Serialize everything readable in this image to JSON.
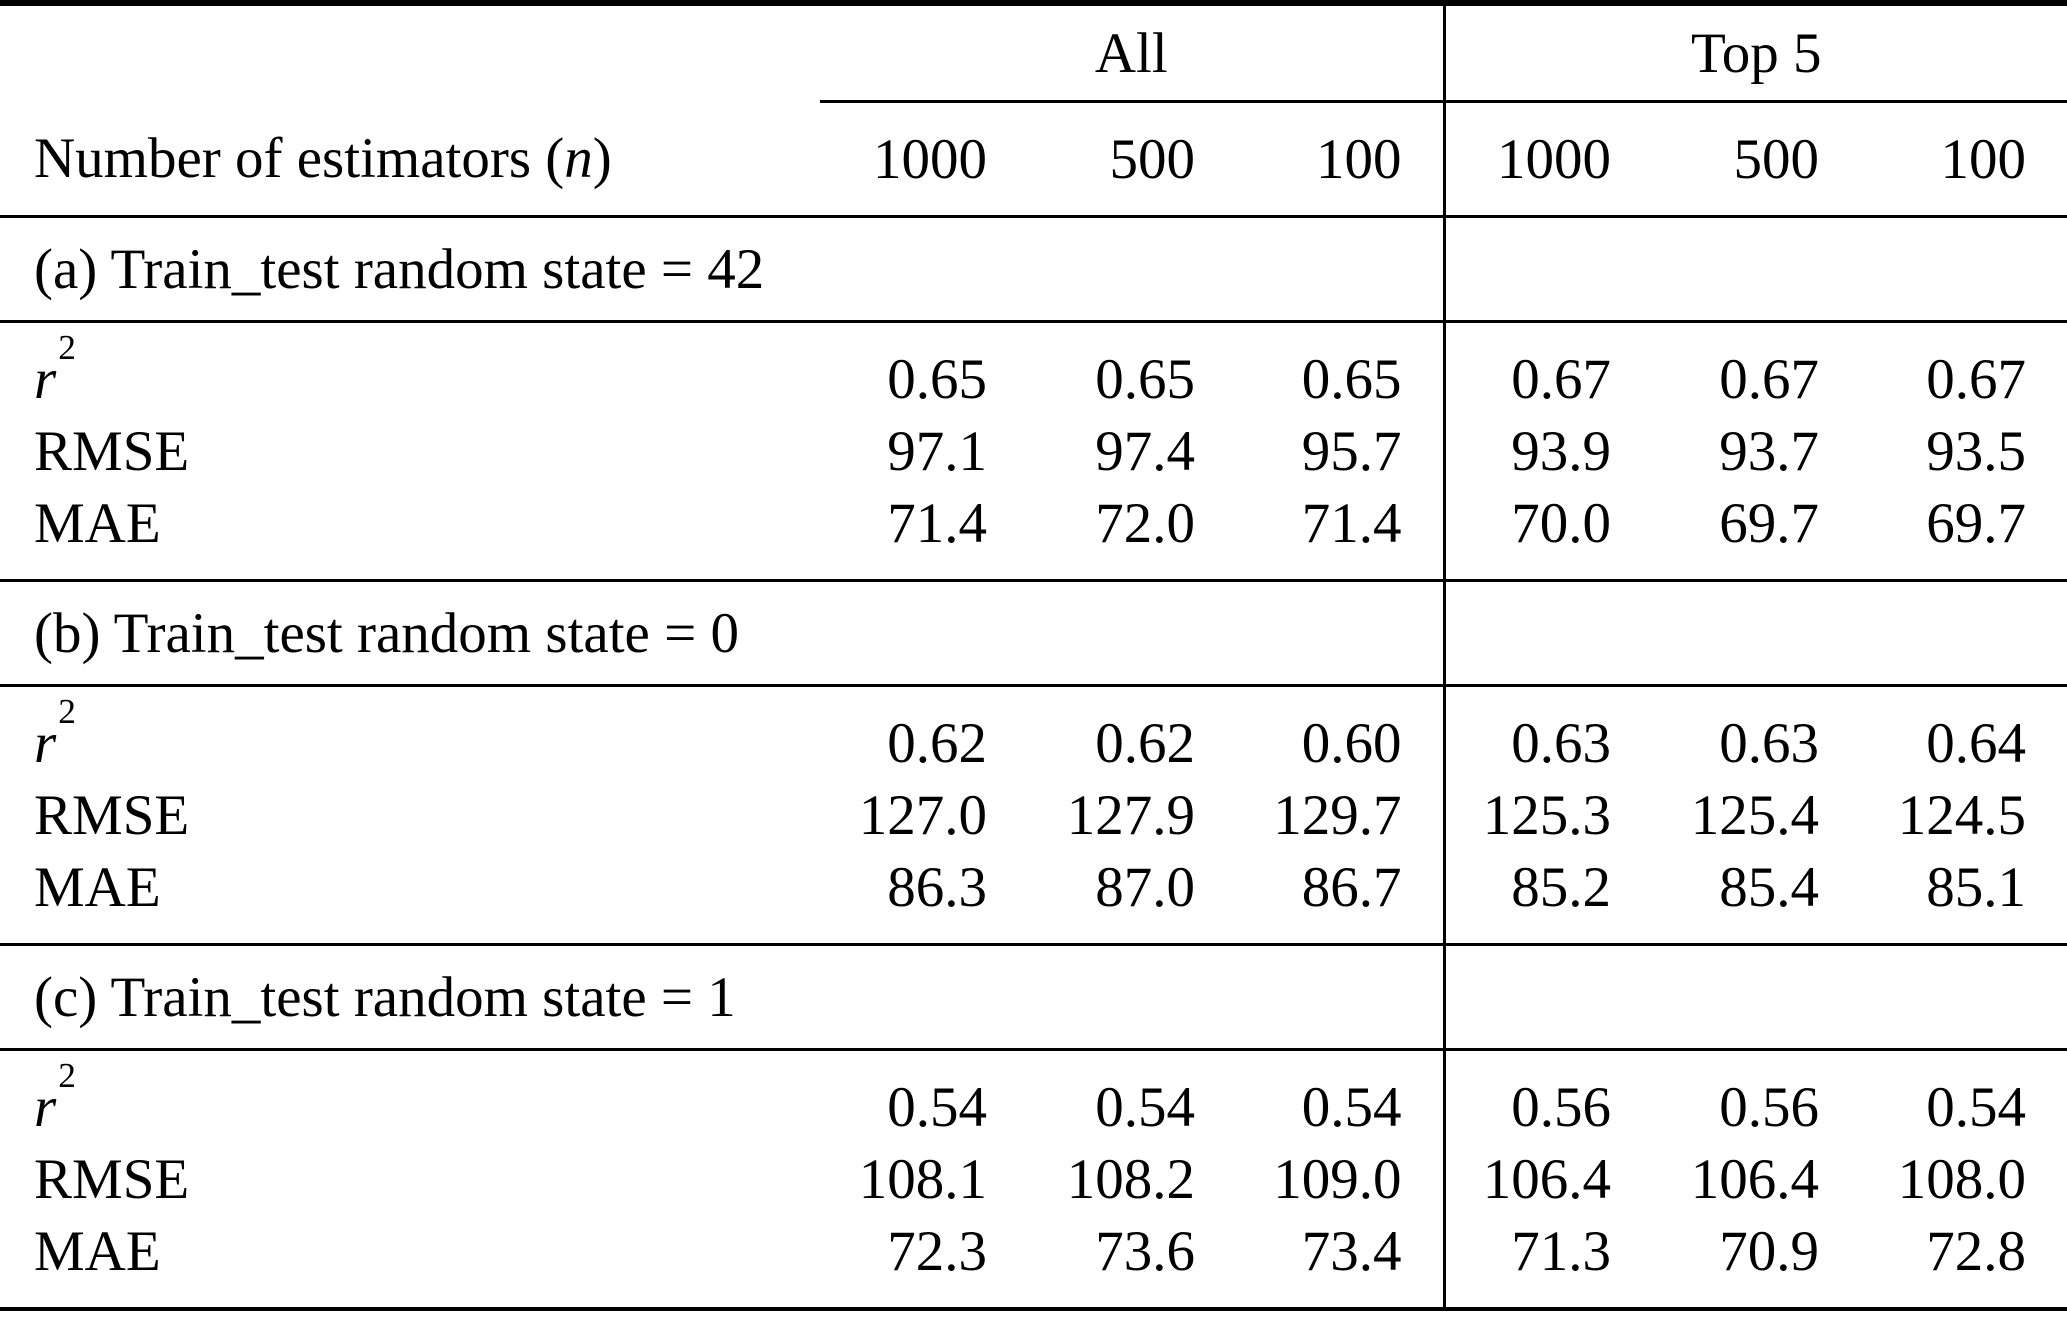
{
  "meta": {
    "text_color": "#000000",
    "background_color": "#ffffff"
  },
  "table": {
    "groups": [
      {
        "label": "All"
      },
      {
        "label": "Top 5"
      }
    ],
    "subheader": {
      "row_label_prefix": "Number of estimators (",
      "row_label_var": "n",
      "row_label_suffix": ")",
      "columns": [
        "1000",
        "500",
        "100",
        "1000",
        "500",
        "100"
      ]
    },
    "sections": [
      {
        "label": "(a) Train_test random state = 42",
        "rows": [
          {
            "metric": "r",
            "sup": "2",
            "values": [
              "0.65",
              "0.65",
              "0.65",
              "0.67",
              "0.67",
              "0.67"
            ]
          },
          {
            "metric": "RMSE",
            "sup": "",
            "values": [
              "97.1",
              "97.4",
              "95.7",
              "93.9",
              "93.7",
              "93.5"
            ]
          },
          {
            "metric": "MAE",
            "sup": "",
            "values": [
              "71.4",
              "72.0",
              "71.4",
              "70.0",
              "69.7",
              "69.7"
            ]
          }
        ]
      },
      {
        "label": "(b) Train_test random state = 0",
        "rows": [
          {
            "metric": "r",
            "sup": "2",
            "values": [
              "0.62",
              "0.62",
              "0.60",
              "0.63",
              "0.63",
              "0.64"
            ]
          },
          {
            "metric": "RMSE",
            "sup": "",
            "values": [
              "127.0",
              "127.9",
              "129.7",
              "125.3",
              "125.4",
              "124.5"
            ]
          },
          {
            "metric": "MAE",
            "sup": "",
            "values": [
              "86.3",
              "87.0",
              "86.7",
              "85.2",
              "85.4",
              "85.1"
            ]
          }
        ]
      },
      {
        "label": "(c) Train_test random state = 1",
        "rows": [
          {
            "metric": "r",
            "sup": "2",
            "values": [
              "0.54",
              "0.54",
              "0.54",
              "0.56",
              "0.56",
              "0.54"
            ]
          },
          {
            "metric": "RMSE",
            "sup": "",
            "values": [
              "108.1",
              "108.2",
              "109.0",
              "106.4",
              "106.4",
              "108.0"
            ]
          },
          {
            "metric": "MAE",
            "sup": "",
            "values": [
              "72.3",
              "73.6",
              "73.4",
              "71.3",
              "70.9",
              "72.8"
            ]
          }
        ]
      }
    ]
  }
}
